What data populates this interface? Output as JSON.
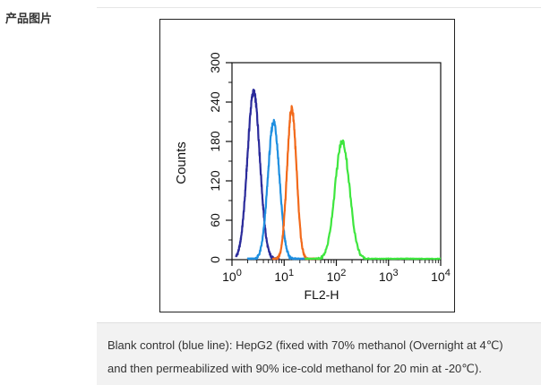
{
  "section_label": "产品图片",
  "caption": {
    "line1": "Blank control (blue line): HepG2 (fixed with 70% methanol (Overnight at 4℃)",
    "line2": "and then permeabilized with 90% ice-cold methanol for 20 min at -20℃)."
  },
  "chart_data": {
    "type": "line",
    "title": "",
    "xlabel": "FL2-H",
    "ylabel": "Counts",
    "xscale": "log",
    "xlim": [
      1,
      10000
    ],
    "ylim": [
      0,
      300
    ],
    "x_ticks": [
      {
        "value": 1,
        "base": "10",
        "exp": "0"
      },
      {
        "value": 10,
        "base": "10",
        "exp": "1"
      },
      {
        "value": 100,
        "base": "10",
        "exp": "2"
      },
      {
        "value": 1000,
        "base": "10",
        "exp": "3"
      },
      {
        "value": 10000,
        "base": "10",
        "exp": "4"
      }
    ],
    "y_ticks": [
      0,
      60,
      120,
      180,
      240,
      300
    ],
    "grid": false,
    "legend": "none",
    "series": [
      {
        "color": "#2b2b9b",
        "peak_x": 2.6,
        "peak_y": 255,
        "spread_decades": 0.12,
        "x_min": 1.2,
        "x_max": 8
      },
      {
        "color": "#1f8fe0",
        "peak_x": 6.3,
        "peak_y": 210,
        "spread_decades": 0.11,
        "x_min": 2,
        "x_max": 25
      },
      {
        "color": "#f26a1b",
        "peak_x": 14,
        "peak_y": 230,
        "spread_decades": 0.09,
        "x_min": 6,
        "x_max": 50
      },
      {
        "color": "#3ee63e",
        "peak_x": 130,
        "peak_y": 180,
        "spread_decades": 0.14,
        "x_min": 25,
        "x_max": 10000
      }
    ]
  }
}
